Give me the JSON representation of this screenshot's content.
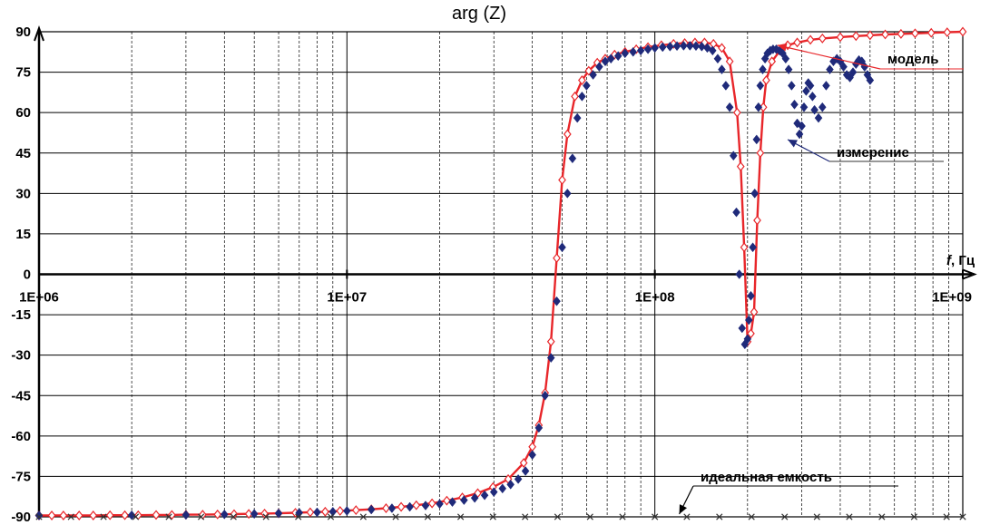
{
  "chart_data": {
    "type": "line",
    "title": "arg (Z)",
    "xlabel_italic": "f",
    "xlabel_rest": ", Гц",
    "ylabel": "",
    "x_scale": "log",
    "xlim": [
      1000000,
      1000000000
    ],
    "ylim": [
      -90,
      90
    ],
    "x_ticks": [
      1000000,
      10000000,
      100000000,
      1000000000
    ],
    "x_tick_labels": [
      "1E+06",
      "1E+07",
      "1E+08",
      "1E+09"
    ],
    "y_ticks": [
      90,
      75,
      60,
      45,
      30,
      15,
      0,
      -15,
      -30,
      -45,
      -60,
      -75,
      -90
    ],
    "y_tick_labels": [
      "90",
      "75",
      "60",
      "45",
      "30",
      "15",
      "0",
      "-15",
      "-30",
      "-45",
      "-60",
      "-75",
      "-90"
    ],
    "grid": true,
    "colors": {
      "model": "#e8262a",
      "measurement": "#1f2a7a",
      "ideal": "#000000",
      "grid": "#000000"
    },
    "annotations": [
      {
        "text": "модель",
        "series": "model",
        "at": [
          250000000,
          85
        ]
      },
      {
        "text": "измерение",
        "series": "measurement",
        "at": [
          270000000,
          50
        ]
      },
      {
        "text": "идеальная емкость",
        "series": "ideal",
        "at": [
          120000000,
          -89
        ]
      }
    ],
    "series": [
      {
        "name": "модель",
        "marker": "open-diamond",
        "x": [
          1000000,
          1100000,
          1200000,
          1350000,
          1500000,
          1700000,
          1900000,
          2100000,
          2400000,
          2700000,
          3000000,
          3400000,
          3800000,
          4300000,
          4800000,
          5400000,
          6000000,
          6800000,
          7600000,
          8500000,
          9500000,
          10700000,
          12000000,
          13400000,
          15000000,
          16800000,
          18900000,
          21100000,
          23700000,
          26600000,
          29800000,
          33400000,
          37500000,
          40000000,
          42000000,
          44000000,
          46000000,
          48000000,
          50000000,
          52000000,
          55000000,
          58000000,
          61000000,
          65000000,
          69000000,
          74000000,
          80000000,
          87000000,
          95000000,
          105000000,
          115000000,
          125000000,
          135000000,
          145000000,
          155000000,
          165000000,
          175000000,
          185000000,
          190000000,
          195000000,
          200000000,
          205000000,
          210000000,
          215000000,
          220000000,
          225000000,
          230000000,
          240000000,
          255000000,
          270000000,
          290000000,
          320000000,
          350000000,
          400000000,
          450000000,
          500000000,
          560000000,
          630000000,
          700000000,
          790000000,
          890000000,
          1000000000
        ],
        "y": [
          -89.5,
          -89.5,
          -89.5,
          -89.5,
          -89.5,
          -89.4,
          -89.4,
          -89.4,
          -89.3,
          -89.3,
          -89.2,
          -89.2,
          -89.1,
          -89.0,
          -88.9,
          -88.8,
          -88.7,
          -88.5,
          -88.3,
          -88.1,
          -87.8,
          -87.5,
          -87.2,
          -86.8,
          -86.3,
          -85.7,
          -85.0,
          -84.0,
          -82.8,
          -81.2,
          -79.0,
          -76.0,
          -70.0,
          -64.0,
          -56.0,
          -44.0,
          -25.0,
          6.0,
          35.0,
          52.0,
          66.0,
          72.0,
          75.5,
          78.5,
          80.0,
          81.5,
          82.5,
          83.5,
          84.3,
          85.0,
          85.5,
          85.8,
          86.0,
          86.0,
          85.5,
          84.0,
          79.0,
          60.0,
          40.0,
          10.0,
          -25.0,
          -22.0,
          -14.0,
          20.0,
          45.0,
          62.0,
          72.0,
          79.0,
          83.0,
          85.0,
          86.0,
          87.0,
          87.5,
          88.0,
          88.4,
          88.7,
          89.0,
          89.2,
          89.4,
          89.6,
          89.8,
          90.0
        ]
      },
      {
        "name": "измерение",
        "marker": "filled-diamond",
        "x": [
          1000000,
          2000000,
          3000000,
          4000000,
          5000000,
          6000000,
          7000000,
          8000000,
          9000000,
          10000000,
          12000000,
          14000000,
          16000000,
          18000000,
          20000000,
          22000000,
          24000000,
          26000000,
          28000000,
          30000000,
          32000000,
          34000000,
          36000000,
          38000000,
          40000000,
          42000000,
          44000000,
          46000000,
          48000000,
          50000000,
          52000000,
          54000000,
          56000000,
          58000000,
          60000000,
          63000000,
          66000000,
          69000000,
          72000000,
          76000000,
          80000000,
          85000000,
          90000000,
          95000000,
          100000000,
          106000000,
          112000000,
          118000000,
          124000000,
          130000000,
          136000000,
          142000000,
          148000000,
          154000000,
          160000000,
          165000000,
          170000000,
          175000000,
          180000000,
          184000000,
          188000000,
          192000000,
          196000000,
          200000000,
          202000000,
          205000000,
          208000000,
          211000000,
          214000000,
          217000000,
          220000000,
          224000000,
          228000000,
          232000000,
          237000000,
          242000000,
          248000000,
          254000000,
          260000000,
          266000000,
          272000000,
          278000000,
          284000000,
          290000000,
          295000000,
          300000000,
          305000000,
          310000000,
          315000000,
          320000000,
          325000000,
          330000000,
          340000000,
          350000000,
          360000000,
          370000000,
          380000000,
          390000000,
          400000000,
          410000000,
          420000000,
          430000000,
          440000000,
          450000000,
          460000000,
          470000000,
          480000000,
          490000000,
          500000000
        ],
        "y": [
          -89.5,
          -89.4,
          -89.3,
          -89.1,
          -88.9,
          -88.7,
          -88.5,
          -88.3,
          -88.1,
          -87.8,
          -87.3,
          -86.8,
          -86.3,
          -85.8,
          -85.2,
          -84.5,
          -83.8,
          -83.0,
          -82.0,
          -80.8,
          -79.5,
          -78.0,
          -76.0,
          -73.0,
          -67.0,
          -57.0,
          -45.0,
          -31.0,
          -10.0,
          10.0,
          30.0,
          43.0,
          58.0,
          66.0,
          70.0,
          74.0,
          77.0,
          79.0,
          80.0,
          81.0,
          82.0,
          82.5,
          83.0,
          83.5,
          84.0,
          84.3,
          84.5,
          84.7,
          84.8,
          84.8,
          84.7,
          84.5,
          84.0,
          83.0,
          80.0,
          76.0,
          70.0,
          62.0,
          44.0,
          23.0,
          0.0,
          -20.0,
          -26.0,
          -24.0,
          -17.0,
          -8.0,
          10.0,
          30.0,
          50.0,
          62.0,
          70.0,
          76.0,
          80.0,
          82.0,
          83.0,
          83.5,
          83.5,
          83.0,
          82.0,
          80.0,
          76.0,
          70.0,
          63.0,
          56.0,
          52.0,
          55.0,
          62.0,
          68.0,
          71.0,
          70.0,
          66.0,
          61.0,
          58.0,
          62.0,
          70.0,
          76.0,
          79.0,
          80.0,
          79.0,
          77.0,
          74.0,
          73.0,
          75.0,
          78.0,
          79.5,
          79.0,
          77.0,
          74.0,
          72.0
        ]
      },
      {
        "name": "идеальная емкость",
        "marker": "x",
        "x": [
          1000000,
          1270000,
          1620000,
          2060000,
          2640000,
          3360000,
          4280000,
          5460000,
          6950000,
          8860000,
          11300000,
          14400000,
          18300000,
          23400000,
          29800000,
          37900000,
          48300000,
          61600000,
          78500000,
          100000000,
          127000000,
          162000000,
          206000000,
          264000000,
          336000000,
          428000000,
          546000000,
          695000000,
          886000000,
          1000000000
        ],
        "y": [
          -90,
          -90,
          -90,
          -90,
          -90,
          -90,
          -90,
          -90,
          -90,
          -90,
          -90,
          -90,
          -90,
          -90,
          -90,
          -90,
          -90,
          -90,
          -90,
          -90,
          -90,
          -90,
          -90,
          -90,
          -90,
          -90,
          -90,
          -90,
          -90,
          -90
        ]
      }
    ]
  }
}
